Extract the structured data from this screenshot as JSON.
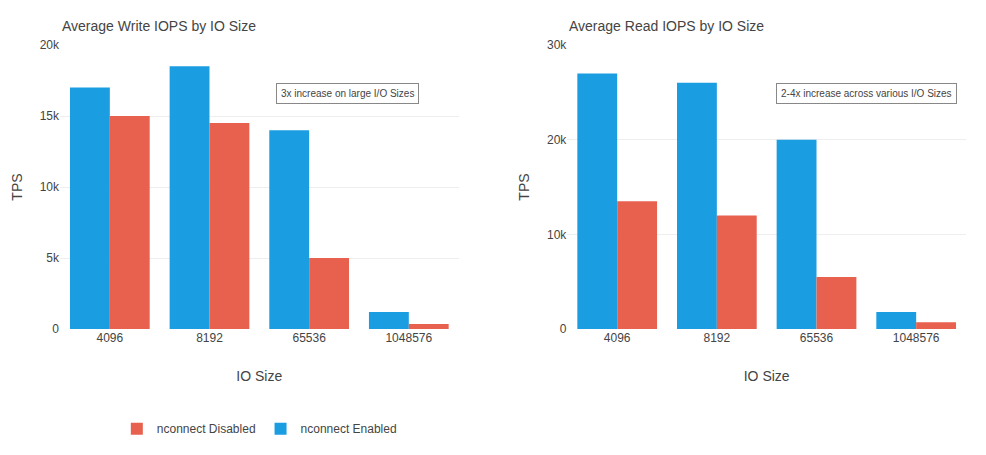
{
  "chart_data": [
    {
      "type": "bar",
      "title": "Average Write IOPS by IO Size",
      "categories": [
        "4096",
        "8192",
        "65536",
        "1048576"
      ],
      "series": [
        {
          "name": "nconnect Enabled",
          "color": "#1b9de2",
          "values": [
            17000,
            18500,
            14000,
            1200
          ]
        },
        {
          "name": "nconnect Disabled",
          "color": "#e8614e",
          "values": [
            15000,
            14500,
            5000,
            350
          ]
        }
      ],
      "xlabel": "IO Size",
      "ylabel": "TPS",
      "ylim": [
        0,
        20000
      ],
      "yticks": [
        0,
        {
          "value": 5000,
          "label": "5k"
        },
        {
          "value": 10000,
          "label": "10k"
        },
        {
          "value": 15000,
          "label": "15k"
        },
        {
          "value": 20000,
          "label": "20k"
        }
      ],
      "grid": true,
      "legend": "bottom",
      "annotations": [
        "3x increase on large I/O Sizes"
      ]
    },
    {
      "type": "bar",
      "title": "Average Read IOPS by IO Size",
      "categories": [
        "4096",
        "8192",
        "65536",
        "1048576"
      ],
      "series": [
        {
          "name": "nconnect Enabled",
          "color": "#1b9de2",
          "values": [
            27000,
            26000,
            20000,
            1800
          ]
        },
        {
          "name": "nconnect Disabled",
          "color": "#e8614e",
          "values": [
            13500,
            12000,
            5500,
            700
          ]
        }
      ],
      "xlabel": "IO Size",
      "ylabel": "TPS",
      "ylim": [
        0,
        30000
      ],
      "yticks": [
        0,
        {
          "value": 10000,
          "label": "10k"
        },
        {
          "value": 20000,
          "label": "20k"
        },
        {
          "value": 30000,
          "label": "30k"
        }
      ],
      "grid": true,
      "annotations": [
        "2-4x increase across various I/O Sizes"
      ]
    }
  ]
}
